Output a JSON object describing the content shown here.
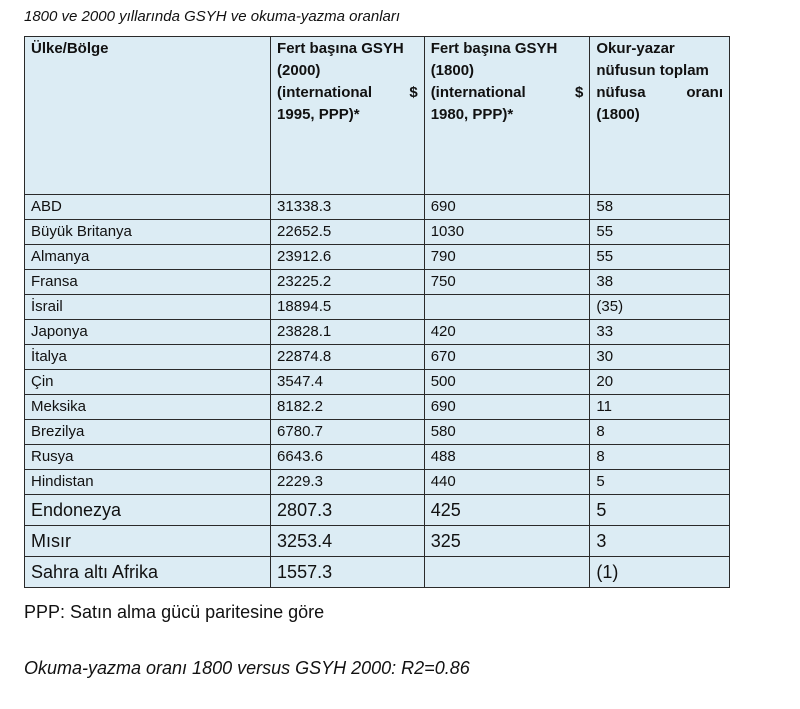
{
  "caption": "1800 ve 2000 yıllarında GSYH ve okuma-yazma oranları",
  "headers": {
    "region": "Ülke/Bölge",
    "gdp2000": [
      "Fert başına GSYH",
      "(2000)",
      "(international $",
      "1995, PPP)*"
    ],
    "gdp1800": [
      "Fert başına GSYH",
      "(1800)",
      "(international $",
      "1980, PPP)*"
    ],
    "literacy": [
      "Okur-yazar",
      "nüfusun toplam",
      "nüfusa oranı",
      "(1800)"
    ]
  },
  "rows": [
    {
      "region": "ABD",
      "gdp2000": "31338.3",
      "gdp1800": "690",
      "literacy": "58"
    },
    {
      "region": "Büyük Britanya",
      "gdp2000": "22652.5",
      "gdp1800": "1030",
      "literacy": "55"
    },
    {
      "region": "Almanya",
      "gdp2000": "23912.6",
      "gdp1800": "790",
      "literacy": "55"
    },
    {
      "region": "Fransa",
      "gdp2000": "23225.2",
      "gdp1800": "750",
      "literacy": "38"
    },
    {
      "region": "İsrail",
      "gdp2000": "18894.5",
      "gdp1800": "",
      "literacy": "(35)"
    },
    {
      "region": "Japonya",
      "gdp2000": "23828.1",
      "gdp1800": "420",
      "literacy": "33"
    },
    {
      "region": "İtalya",
      "gdp2000": "22874.8",
      "gdp1800": "670",
      "literacy": "30"
    },
    {
      "region": "Çin",
      "gdp2000": "3547.4",
      "gdp1800": "500",
      "literacy": "20"
    },
    {
      "region": "Meksika",
      "gdp2000": "8182.2",
      "gdp1800": "690",
      "literacy": "11"
    },
    {
      "region": "Brezilya",
      "gdp2000": "6780.7",
      "gdp1800": "580",
      "literacy": "8"
    },
    {
      "region": "Rusya",
      "gdp2000": "6643.6",
      "gdp1800": "488",
      "literacy": "8"
    },
    {
      "region": "Hindistan",
      "gdp2000": "2229.3",
      "gdp1800": "440",
      "literacy": "5"
    },
    {
      "region": "Endonezya",
      "gdp2000": "2807.3",
      "gdp1800": "425",
      "literacy": "5"
    },
    {
      "region": "Mısır",
      "gdp2000": "3253.4",
      "gdp1800": "325",
      "literacy": "3"
    },
    {
      "region": "Sahra altı Afrika",
      "gdp2000": "1557.3",
      "gdp1800": "",
      "literacy": "(1)"
    }
  ],
  "note": "PPP: Satın alma gücü paritesine göre",
  "stat": "Okuma-yazma oranı 1800 versus GSYH 2000: R2=0.86"
}
